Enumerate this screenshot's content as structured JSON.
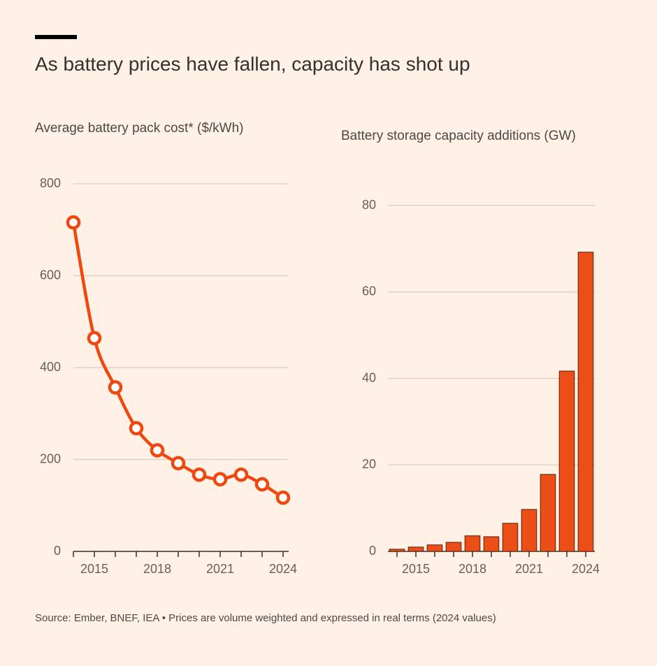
{
  "title": "As battery prices have fallen, capacity has shot up",
  "source": "Source: Ember, BNEF, IEA • Prices are volume weighted and expressed in real terms (2024 values)",
  "chart_data": [
    {
      "type": "line",
      "subtitle": "Average battery pack cost* ($/kWh)",
      "x": [
        2014,
        2015,
        2016,
        2017,
        2018,
        2019,
        2020,
        2021,
        2022,
        2023,
        2024
      ],
      "values": [
        716,
        464,
        357,
        268,
        220,
        192,
        167,
        157,
        167,
        146,
        117
      ],
      "color": "#f0470f",
      "xlim": [
        2014,
        2024
      ],
      "xticks": [
        2015,
        2018,
        2021,
        2024
      ],
      "ylim": [
        0,
        800
      ],
      "yticks": [
        0,
        200,
        400,
        600,
        800
      ],
      "grid": true
    },
    {
      "type": "bar",
      "subtitle": "Battery storage capacity additions (GW)",
      "x": [
        2014,
        2015,
        2016,
        2017,
        2018,
        2019,
        2020,
        2021,
        2022,
        2023,
        2024
      ],
      "values": [
        0.5,
        1.0,
        1.5,
        2.1,
        3.6,
        3.4,
        6.5,
        9.7,
        17.8,
        41.7,
        69.2
      ],
      "color": "#eb4f17",
      "xlim": [
        2014,
        2024
      ],
      "xticks": [
        2015,
        2018,
        2021,
        2024
      ],
      "ylim": [
        0,
        80
      ],
      "yticks": [
        0,
        20,
        40,
        60,
        80
      ],
      "grid": true
    }
  ]
}
